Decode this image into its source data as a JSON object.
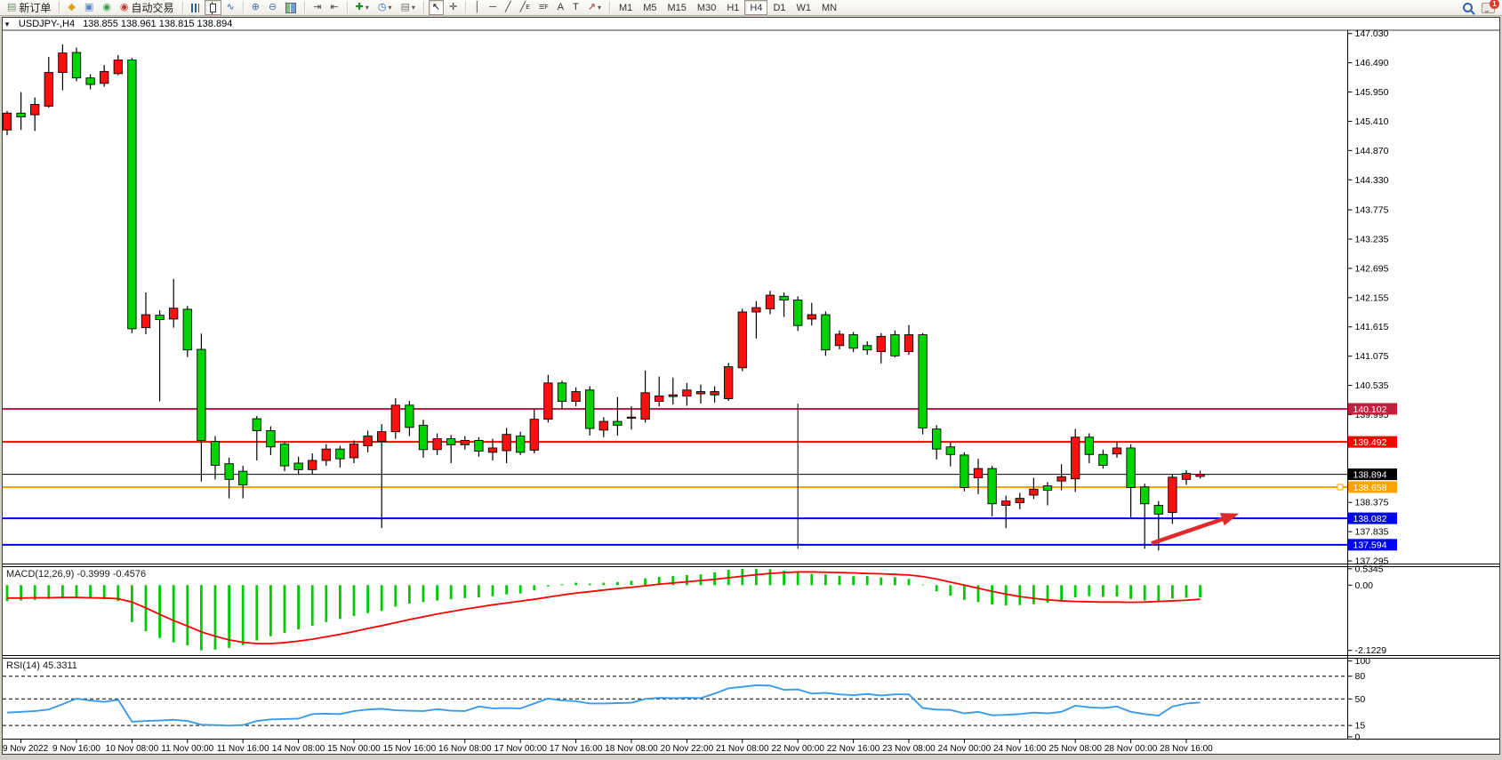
{
  "toolbar": {
    "groups": [
      {
        "items": [
          {
            "icon": "new-order",
            "label": "新订单"
          }
        ]
      },
      {
        "items": [
          {
            "icon": "metaeditor"
          },
          {
            "icon": "market"
          },
          {
            "icon": "signals"
          },
          {
            "icon": "autotrading",
            "label": "自动交易"
          }
        ]
      },
      {
        "items": [
          {
            "icon": "bar-chart"
          },
          {
            "icon": "candlesticks",
            "active": true
          },
          {
            "icon": "line-chart"
          }
        ]
      },
      {
        "items": [
          {
            "icon": "zoom-in"
          },
          {
            "icon": "zoom-out"
          },
          {
            "icon": "tile-windows"
          }
        ]
      },
      {
        "items": [
          {
            "icon": "auto-scroll"
          },
          {
            "icon": "chart-shift"
          }
        ]
      },
      {
        "items": [
          {
            "icon": "indicators",
            "dropdown": true
          },
          {
            "icon": "periods",
            "dropdown": true
          },
          {
            "icon": "templates",
            "dropdown": true
          }
        ]
      },
      {
        "items": [
          {
            "icon": "cursor",
            "active": true
          },
          {
            "icon": "crosshair"
          }
        ]
      },
      {
        "items": [
          {
            "icon": "vertical-line"
          },
          {
            "icon": "horizontal-line"
          },
          {
            "icon": "trendline"
          },
          {
            "icon": "equidistant-channel"
          },
          {
            "icon": "fibonacci"
          },
          {
            "icon": "text"
          },
          {
            "icon": "text-label"
          },
          {
            "icon": "arrows",
            "dropdown": true
          }
        ]
      }
    ],
    "timeframes": [
      "M1",
      "M5",
      "M15",
      "M30",
      "H1",
      "H4",
      "D1",
      "W1",
      "MN"
    ],
    "active_timeframe": "H4",
    "chat_badge": "1"
  },
  "chart_header": {
    "symbol": "USDJPY-,H4",
    "ohlc": "138.855 138.961 138.815 138.894"
  },
  "chart_data": {
    "type": "candlestick",
    "title": "USDJPY-,H4",
    "current_price": 138.894,
    "price_axis_ticks": [
      147.03,
      146.49,
      145.95,
      145.41,
      144.87,
      144.33,
      143.775,
      143.235,
      142.695,
      142.155,
      141.615,
      141.075,
      140.535,
      139.995,
      139.455,
      138.915,
      138.375,
      137.835,
      137.295
    ],
    "time_labels": [
      "9 Nov 2022",
      "9 Nov 16:00",
      "10 Nov 08:00",
      "11 Nov 00:00",
      "11 Nov 16:00",
      "14 Nov 08:00",
      "15 Nov 00:00",
      "15 Nov 16:00",
      "16 Nov 08:00",
      "17 Nov 00:00",
      "17 Nov 16:00",
      "18 Nov 08:00",
      "20 Nov 22:00",
      "21 Nov 08:00",
      "22 Nov 00:00",
      "22 Nov 16:00",
      "23 Nov 08:00",
      "24 Nov 00:00",
      "24 Nov 16:00",
      "25 Nov 08:00",
      "28 Nov 00:00",
      "28 Nov 16:00"
    ],
    "hlines": [
      {
        "price": 140.102,
        "color": "#c2203f",
        "width": 2
      },
      {
        "price": 139.492,
        "color": "#ff0000",
        "width": 2
      },
      {
        "price": 138.658,
        "color": "#ffa200",
        "width": 2,
        "selected": true
      },
      {
        "price": 138.082,
        "color": "#0000ff",
        "width": 2
      },
      {
        "price": 137.594,
        "color": "#0000ff",
        "width": 2
      }
    ],
    "bull_color": "#fe1010",
    "bear_color": "#00d400",
    "candles": [
      [
        145.25,
        145.6,
        145.15,
        145.56
      ],
      [
        145.56,
        145.95,
        145.25,
        145.49
      ],
      [
        145.53,
        145.85,
        145.23,
        145.72
      ],
      [
        145.69,
        146.6,
        145.66,
        146.31
      ],
      [
        146.31,
        146.83,
        145.98,
        146.67
      ],
      [
        146.68,
        146.77,
        146.15,
        146.21
      ],
      [
        146.21,
        146.28,
        146.0,
        146.09
      ],
      [
        146.11,
        146.45,
        146.05,
        146.33
      ],
      [
        146.29,
        146.63,
        146.26,
        146.54
      ],
      [
        146.54,
        146.58,
        141.5,
        141.58
      ],
      [
        141.6,
        142.25,
        141.48,
        141.84
      ],
      [
        141.83,
        141.92,
        140.24,
        141.75
      ],
      [
        141.76,
        142.5,
        141.6,
        141.96
      ],
      [
        141.94,
        142.0,
        141.06,
        141.19
      ],
      [
        141.2,
        141.49,
        138.76,
        139.52
      ],
      [
        139.5,
        139.6,
        138.8,
        139.06
      ],
      [
        139.09,
        139.2,
        138.45,
        138.8
      ],
      [
        138.95,
        139.05,
        138.45,
        138.7
      ],
      [
        139.92,
        139.97,
        139.15,
        139.7
      ],
      [
        139.7,
        139.78,
        139.25,
        139.4
      ],
      [
        139.45,
        139.5,
        138.95,
        139.05
      ],
      [
        139.1,
        139.22,
        138.88,
        138.98
      ],
      [
        138.98,
        139.28,
        138.9,
        139.15
      ],
      [
        139.15,
        139.45,
        139.05,
        139.36
      ],
      [
        139.36,
        139.42,
        139.02,
        139.18
      ],
      [
        139.2,
        139.52,
        139.1,
        139.45
      ],
      [
        139.42,
        139.7,
        139.3,
        139.6
      ],
      [
        139.5,
        139.82,
        137.9,
        139.68
      ],
      [
        139.68,
        140.3,
        139.55,
        140.17
      ],
      [
        140.17,
        140.25,
        139.6,
        139.76
      ],
      [
        139.8,
        139.9,
        139.2,
        139.35
      ],
      [
        139.35,
        139.65,
        139.25,
        139.55
      ],
      [
        139.55,
        139.62,
        139.1,
        139.44
      ],
      [
        139.44,
        139.6,
        139.35,
        139.52
      ],
      [
        139.52,
        139.58,
        139.22,
        139.32
      ],
      [
        139.3,
        139.55,
        139.15,
        139.38
      ],
      [
        139.33,
        139.75,
        139.1,
        139.63
      ],
      [
        139.6,
        139.68,
        139.25,
        139.3
      ],
      [
        139.34,
        140.1,
        139.28,
        139.91
      ],
      [
        139.91,
        140.73,
        139.85,
        140.58
      ],
      [
        140.58,
        140.62,
        140.1,
        140.24
      ],
      [
        140.24,
        140.5,
        140.15,
        140.42
      ],
      [
        140.45,
        140.52,
        139.61,
        139.74
      ],
      [
        139.71,
        139.95,
        139.58,
        139.87
      ],
      [
        139.87,
        140.32,
        139.61,
        139.8
      ],
      [
        139.93,
        140.15,
        139.72,
        139.95
      ],
      [
        139.91,
        140.81,
        139.85,
        140.4
      ],
      [
        140.24,
        140.7,
        140.15,
        140.34
      ],
      [
        140.33,
        140.68,
        140.18,
        140.36
      ],
      [
        140.34,
        140.58,
        140.16,
        140.45
      ],
      [
        140.38,
        140.55,
        140.2,
        140.42
      ],
      [
        140.36,
        140.52,
        140.22,
        140.42
      ],
      [
        140.29,
        140.95,
        140.25,
        140.88
      ],
      [
        140.86,
        141.95,
        140.8,
        141.89
      ],
      [
        141.89,
        142.09,
        141.4,
        141.97
      ],
      [
        141.95,
        142.28,
        141.85,
        142.2
      ],
      [
        142.18,
        142.25,
        141.8,
        142.11
      ],
      [
        142.11,
        142.18,
        141.54,
        141.64
      ],
      [
        141.76,
        142.06,
        141.64,
        141.84
      ],
      [
        141.84,
        141.9,
        141.08,
        141.19
      ],
      [
        141.27,
        141.55,
        141.2,
        141.48
      ],
      [
        141.47,
        141.52,
        141.15,
        141.22
      ],
      [
        141.27,
        141.35,
        141.1,
        141.19
      ],
      [
        141.16,
        141.5,
        140.94,
        141.44
      ],
      [
        141.47,
        141.55,
        141.05,
        141.08
      ],
      [
        141.16,
        141.65,
        141.1,
        141.47
      ],
      [
        141.47,
        141.5,
        139.63,
        139.75
      ],
      [
        139.73,
        139.8,
        139.17,
        139.36
      ],
      [
        139.4,
        139.48,
        139.04,
        139.26
      ],
      [
        139.25,
        139.3,
        138.58,
        138.65
      ],
      [
        138.83,
        139.18,
        138.53,
        139.0
      ],
      [
        139.0,
        139.05,
        138.12,
        138.35
      ],
      [
        138.32,
        138.5,
        137.9,
        138.4
      ],
      [
        138.37,
        138.55,
        138.25,
        138.45
      ],
      [
        138.51,
        138.83,
        138.44,
        138.62
      ],
      [
        138.68,
        138.75,
        138.32,
        138.6
      ],
      [
        138.77,
        139.08,
        138.6,
        138.85
      ],
      [
        138.81,
        139.73,
        138.57,
        139.58
      ],
      [
        139.58,
        139.65,
        139.1,
        139.26
      ],
      [
        139.26,
        139.35,
        139.0,
        139.06
      ],
      [
        139.27,
        139.5,
        139.2,
        139.38
      ],
      [
        139.38,
        139.45,
        138.1,
        138.65
      ],
      [
        138.66,
        138.72,
        137.52,
        138.35
      ],
      [
        138.32,
        138.4,
        137.49,
        138.16
      ],
      [
        138.19,
        138.9,
        137.98,
        138.84
      ],
      [
        138.8,
        138.97,
        138.7,
        138.91
      ],
      [
        138.855,
        138.961,
        138.815,
        138.894
      ]
    ],
    "vline": {
      "index": 57,
      "from_price": 140.2,
      "to_price": 137.52
    },
    "arrow": {
      "color": "#e02b2b",
      "from_index": 82.5,
      "from_price": 137.62,
      "to_index": 88.8,
      "to_price": 138.17
    },
    "macd": {
      "label": "MACD(12,26,9) -0.3999 -0.4576",
      "axis_ticks": [
        0.5345,
        0.0,
        -2.1229
      ],
      "histogram_color": "#00ca00",
      "signal_color": "#ff0000",
      "histogram": [
        -0.52,
        -0.5,
        -0.48,
        -0.45,
        -0.43,
        -0.4,
        -0.42,
        -0.46,
        -0.52,
        -1.2,
        -1.5,
        -1.72,
        -1.86,
        -1.96,
        -2.12,
        -2.1,
        -2.04,
        -1.95,
        -1.8,
        -1.66,
        -1.55,
        -1.44,
        -1.32,
        -1.2,
        -1.1,
        -1.0,
        -0.91,
        -0.84,
        -0.7,
        -0.6,
        -0.55,
        -0.5,
        -0.46,
        -0.42,
        -0.4,
        -0.36,
        -0.3,
        -0.27,
        -0.17,
        -0.04,
        0.03,
        0.08,
        0.05,
        0.08,
        0.1,
        0.14,
        0.22,
        0.27,
        0.3,
        0.33,
        0.35,
        0.42,
        0.5,
        0.53,
        0.5345,
        0.52,
        0.47,
        0.44,
        0.37,
        0.35,
        0.31,
        0.29,
        0.3,
        0.25,
        0.26,
        0.2,
        0.02,
        -0.2,
        -0.34,
        -0.48,
        -0.55,
        -0.63,
        -0.66,
        -0.65,
        -0.62,
        -0.57,
        -0.5,
        -0.4,
        -0.36,
        -0.38,
        -0.37,
        -0.45,
        -0.5,
        -0.53,
        -0.44,
        -0.41,
        -0.3999
      ],
      "signal": [
        -0.42,
        -0.42,
        -0.41,
        -0.41,
        -0.4,
        -0.4,
        -0.41,
        -0.42,
        -0.44,
        -0.55,
        -0.74,
        -0.95,
        -1.15,
        -1.33,
        -1.52,
        -1.66,
        -1.78,
        -1.86,
        -1.9,
        -1.9,
        -1.87,
        -1.82,
        -1.76,
        -1.68,
        -1.6,
        -1.51,
        -1.41,
        -1.32,
        -1.22,
        -1.12,
        -1.03,
        -0.94,
        -0.86,
        -0.78,
        -0.71,
        -0.64,
        -0.58,
        -0.52,
        -0.46,
        -0.39,
        -0.32,
        -0.26,
        -0.21,
        -0.16,
        -0.11,
        -0.07,
        -0.02,
        0.03,
        0.07,
        0.11,
        0.15,
        0.19,
        0.24,
        0.29,
        0.34,
        0.38,
        0.41,
        0.43,
        0.43,
        0.42,
        0.41,
        0.4,
        0.38,
        0.37,
        0.35,
        0.33,
        0.28,
        0.2,
        0.1,
        0.0,
        -0.1,
        -0.2,
        -0.29,
        -0.37,
        -0.43,
        -0.48,
        -0.51,
        -0.53,
        -0.54,
        -0.55,
        -0.55,
        -0.56,
        -0.55,
        -0.53,
        -0.51,
        -0.49,
        -0.4576
      ]
    },
    "rsi": {
      "label": "RSI(14) 45.3311",
      "axis_ticks": [
        100,
        80,
        50,
        15,
        0
      ],
      "levels": [
        80,
        50,
        15
      ],
      "line_color": "#3b9be8",
      "values": [
        32,
        33,
        34,
        36,
        43,
        50.5,
        48,
        46,
        49,
        20,
        21,
        21.5,
        22.5,
        21,
        16,
        15.5,
        14.8,
        15.5,
        21,
        23,
        23.5,
        24,
        30,
        30.5,
        30,
        34,
        36,
        37,
        35,
        34.5,
        34,
        36.5,
        34.5,
        34,
        40,
        37.5,
        38,
        37.5,
        44,
        50.5,
        48,
        47,
        44,
        44,
        44.5,
        45,
        50,
        51.5,
        51,
        51.5,
        51,
        57,
        64,
        66,
        68,
        67.5,
        62,
        62.5,
        57,
        58,
        56,
        55,
        56.5,
        54.5,
        56,
        56,
        38,
        36,
        35.5,
        31,
        33,
        28.5,
        29,
        30,
        32,
        31,
        33,
        41,
        39,
        38,
        40,
        33,
        30,
        28,
        40,
        44,
        45.3311
      ]
    }
  }
}
